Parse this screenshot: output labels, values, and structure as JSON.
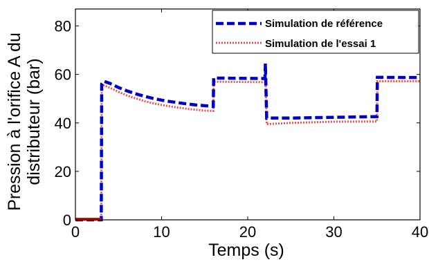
{
  "chart_data": {
    "type": "line",
    "title": "",
    "xlabel": "Temps (s)",
    "ylabel_lines": [
      "Pression à l'orifice A du",
      "distributeur (bar)"
    ],
    "xlim": [
      0,
      40
    ],
    "ylim": [
      0,
      87
    ],
    "xticks": [
      0,
      10,
      20,
      30,
      40
    ],
    "yticks": [
      0,
      20,
      40,
      60,
      80
    ],
    "xtick_labels": [
      "0",
      "10",
      "20",
      "30",
      "40"
    ],
    "ytick_labels": [
      "0",
      "20",
      "40",
      "60",
      "80"
    ],
    "grid": false,
    "legend_position": "top-right",
    "series": [
      {
        "name": "Simulation de référence",
        "color": "#0000cc",
        "style": "dashed",
        "points": [
          [
            0,
            0
          ],
          [
            3,
            0
          ],
          [
            3.05,
            56
          ],
          [
            3.3,
            57.2
          ],
          [
            4,
            56.3
          ],
          [
            5,
            54.6
          ],
          [
            6,
            53.2
          ],
          [
            7,
            52.0
          ],
          [
            8,
            51.0
          ],
          [
            9,
            50.1
          ],
          [
            10,
            49.4
          ],
          [
            11,
            48.8
          ],
          [
            12,
            48.3
          ],
          [
            13,
            47.8
          ],
          [
            14,
            47.4
          ],
          [
            15,
            47.1
          ],
          [
            16,
            46.8
          ],
          [
            16.05,
            58.5
          ],
          [
            22,
            58.3
          ],
          [
            22.05,
            64.5
          ],
          [
            22.2,
            42
          ],
          [
            25,
            42
          ],
          [
            30,
            42.3
          ],
          [
            35,
            42.6
          ],
          [
            35.05,
            58.8
          ],
          [
            40,
            58.7
          ]
        ]
      },
      {
        "name": "Simulation de l'essai 1",
        "color": "#e05050",
        "style": "dotted",
        "points": [
          [
            0,
            0
          ],
          [
            3,
            0
          ],
          [
            3.05,
            54.5
          ],
          [
            3.3,
            55.5
          ],
          [
            4,
            54.5
          ],
          [
            5,
            52.8
          ],
          [
            6,
            51.3
          ],
          [
            7,
            50.1
          ],
          [
            8,
            49.0
          ],
          [
            9,
            48.1
          ],
          [
            10,
            47.4
          ],
          [
            11,
            46.8
          ],
          [
            12,
            46.3
          ],
          [
            13,
            45.8
          ],
          [
            14,
            45.4
          ],
          [
            15,
            45.1
          ],
          [
            16,
            44.9
          ],
          [
            16.05,
            57
          ],
          [
            22,
            56.8
          ],
          [
            22.05,
            61
          ],
          [
            22.2,
            39.5
          ],
          [
            25,
            40
          ],
          [
            30,
            40.5
          ],
          [
            35,
            40.6
          ],
          [
            35.05,
            57.2
          ],
          [
            40,
            57.2
          ]
        ]
      }
    ]
  }
}
